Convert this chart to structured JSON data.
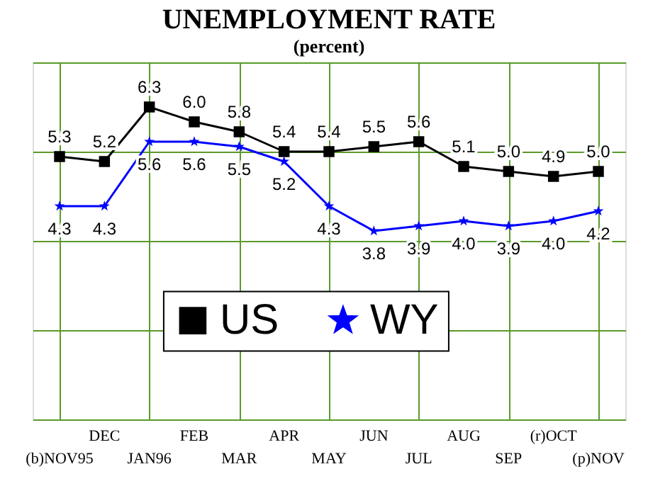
{
  "chart_data": {
    "type": "line",
    "title": "UNEMPLOYMENT RATE",
    "subtitle": "(percent)",
    "categories": [
      "(b)NOV95",
      "DEC",
      "JAN96",
      "FEB",
      "MAR",
      "APR",
      "MAY",
      "JUN",
      "JUL",
      "AUG",
      "SEP",
      "(r)OCT",
      "(p)NOV"
    ],
    "series": [
      {
        "name": "US",
        "color": "#000000",
        "marker": "square",
        "values": [
          5.3,
          5.2,
          6.3,
          6.0,
          5.8,
          5.4,
          5.4,
          5.5,
          5.6,
          5.1,
          5.0,
          4.9,
          5.0
        ],
        "value_labels": [
          "5.3",
          "5.2",
          "6.3",
          "6.0",
          "5.8",
          "5.4",
          "5.4",
          "5.5",
          "5.6",
          "5.1",
          "5.0",
          "4.9",
          "5.0"
        ]
      },
      {
        "name": "WY",
        "color": "#0000ff",
        "marker": "star",
        "values": [
          4.3,
          4.3,
          5.6,
          5.6,
          5.5,
          5.2,
          4.3,
          3.8,
          3.9,
          4.0,
          3.9,
          4.0,
          4.2
        ],
        "value_labels": [
          "4.3",
          "4.3",
          "5.6",
          "5.6",
          "5.5",
          "5.2",
          "4.3",
          "3.8",
          "3.9",
          "4.0",
          "3.9",
          "4.0",
          "4.2"
        ]
      }
    ],
    "ylim": [
      0,
      7.2
    ],
    "grid": true,
    "legend": "bottom",
    "tick_labels": "x",
    "line_style": "solid"
  }
}
